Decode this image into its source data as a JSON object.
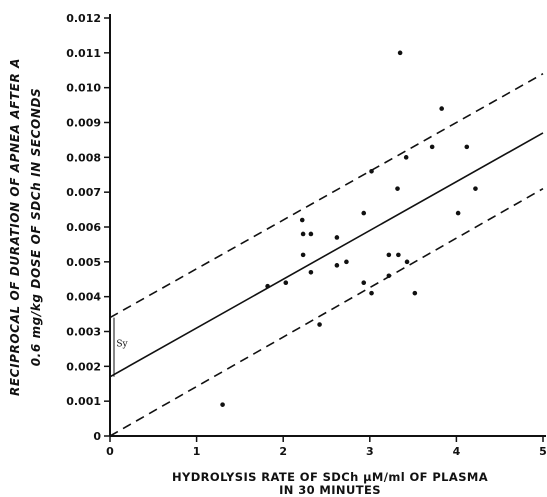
{
  "chart_data": {
    "type": "scatter",
    "xlabel_line1": "HYDROLYSIS RATE OF SDCh  μM/ml  OF PLASMA",
    "xlabel_line2": "IN 30 MINUTES",
    "ylabel_line1": "RECIPROCAL OF DURATION OF APNEA AFTER A",
    "ylabel_line2": "0.6 mg/kg  DOSE OF SDCh  IN  SECONDS",
    "xlim": [
      0,
      5
    ],
    "ylim": [
      0,
      0.012
    ],
    "x_ticks": [
      0,
      1,
      2,
      3,
      4,
      5
    ],
    "x_tick_labels": [
      "0",
      "1",
      "2",
      "3",
      "4",
      "5"
    ],
    "y_ticks": [
      0,
      0.001,
      0.002,
      0.003,
      0.004,
      0.005,
      0.006,
      0.007,
      0.008,
      0.009,
      0.01,
      0.011,
      0.012
    ],
    "y_tick_labels": [
      "0",
      "0.001",
      "0.002",
      "0.003",
      "0.004",
      "0.005",
      "0.006",
      "0.007",
      "0.008",
      "0.009",
      "0.010",
      "0.011",
      "0.012"
    ],
    "grid": false,
    "points": [
      {
        "x": 1.3,
        "y": 0.0009
      },
      {
        "x": 1.82,
        "y": 0.0043
      },
      {
        "x": 2.03,
        "y": 0.0044
      },
      {
        "x": 2.22,
        "y": 0.0062
      },
      {
        "x": 2.23,
        "y": 0.0058
      },
      {
        "x": 2.23,
        "y": 0.0052
      },
      {
        "x": 2.32,
        "y": 0.0058
      },
      {
        "x": 2.32,
        "y": 0.0047
      },
      {
        "x": 2.42,
        "y": 0.0032
      },
      {
        "x": 2.62,
        "y": 0.0057
      },
      {
        "x": 2.62,
        "y": 0.0049
      },
      {
        "x": 2.73,
        "y": 0.005
      },
      {
        "x": 2.93,
        "y": 0.0064
      },
      {
        "x": 2.93,
        "y": 0.0044
      },
      {
        "x": 3.02,
        "y": 0.0076
      },
      {
        "x": 3.02,
        "y": 0.0041
      },
      {
        "x": 3.22,
        "y": 0.0052
      },
      {
        "x": 3.22,
        "y": 0.0046
      },
      {
        "x": 3.32,
        "y": 0.0071
      },
      {
        "x": 3.33,
        "y": 0.0052
      },
      {
        "x": 3.35,
        "y": 0.011
      },
      {
        "x": 3.42,
        "y": 0.008
      },
      {
        "x": 3.43,
        "y": 0.005
      },
      {
        "x": 3.52,
        "y": 0.0041
      },
      {
        "x": 3.72,
        "y": 0.0083
      },
      {
        "x": 3.83,
        "y": 0.0094
      },
      {
        "x": 4.02,
        "y": 0.0064
      },
      {
        "x": 4.12,
        "y": 0.0083
      },
      {
        "x": 4.22,
        "y": 0.0071
      }
    ],
    "regression_line": {
      "style": "solid",
      "x": [
        0,
        5
      ],
      "y": [
        0.0017,
        0.0087
      ]
    },
    "upper_band": {
      "style": "dashed",
      "x": [
        0,
        5
      ],
      "y": [
        0.0034,
        0.0104
      ]
    },
    "lower_band": {
      "style": "dashed",
      "x": [
        0,
        5
      ],
      "y": [
        0.0,
        0.0071
      ]
    },
    "annotation": {
      "text": "Sy",
      "x": 0.12,
      "y": 0.00265
    }
  }
}
